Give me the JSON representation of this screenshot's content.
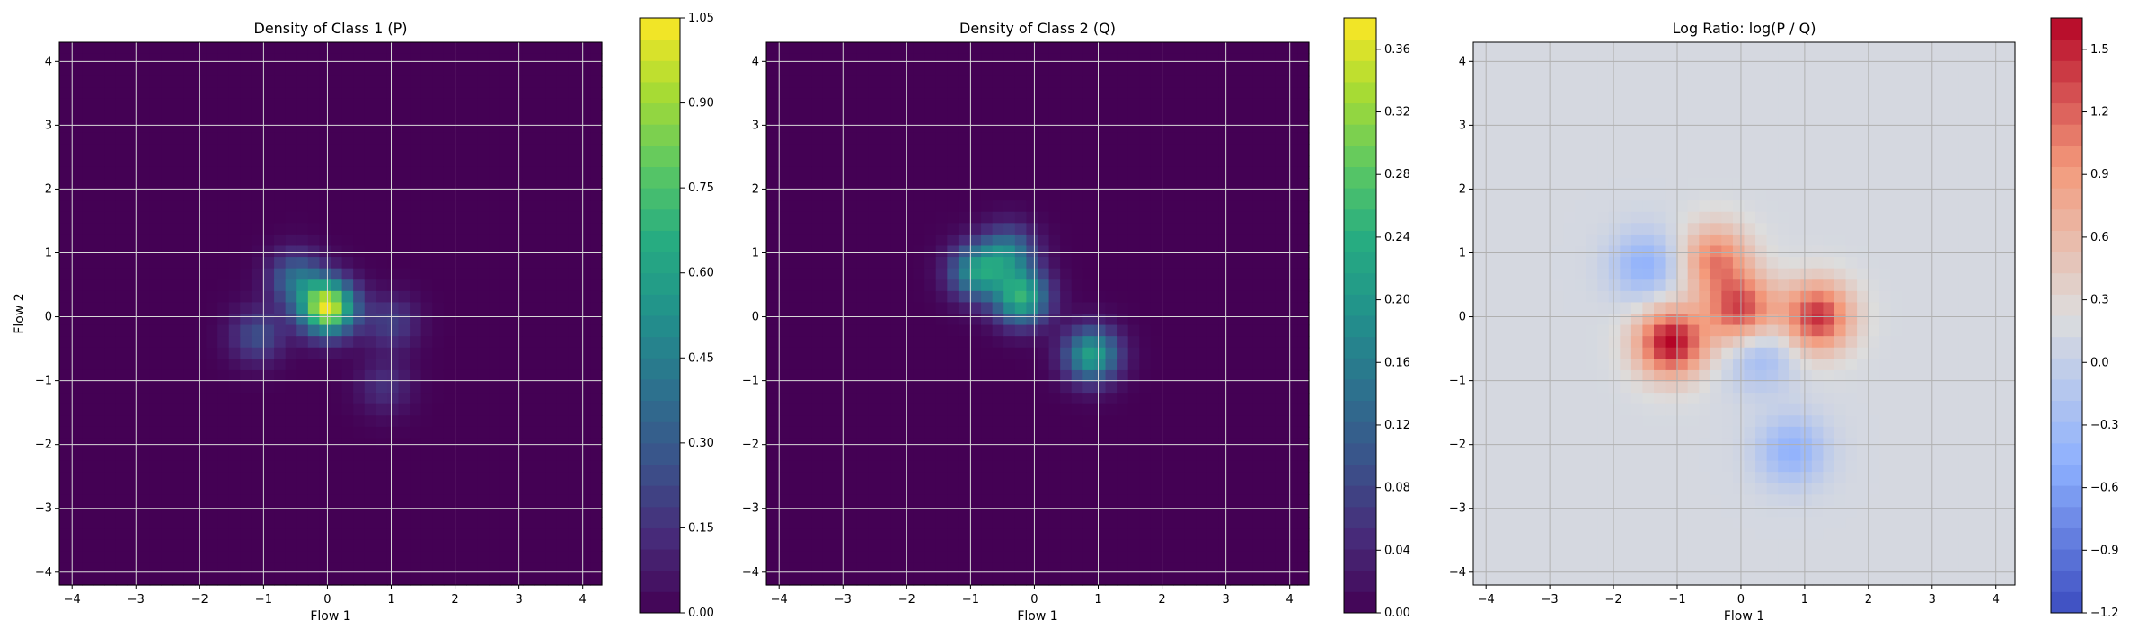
{
  "chart_data": [
    {
      "type": "heatmap",
      "title": "Density of Class 1 (P)",
      "xlabel": "Flow 1",
      "ylabel": "Flow 2",
      "xlim": [
        -4.2,
        4.3
      ],
      "ylim": [
        -4.2,
        4.3
      ],
      "xticks": [
        -4,
        -3,
        -2,
        -1,
        0,
        1,
        2,
        3,
        4
      ],
      "yticks": [
        -4,
        -3,
        -2,
        -1,
        0,
        1,
        2,
        3,
        4
      ],
      "xtick_labels": [
        "−4",
        "−3",
        "−2",
        "−1",
        "0",
        "1",
        "2",
        "3",
        "4"
      ],
      "ytick_labels": [
        "−4",
        "−3",
        "−2",
        "−1",
        "0",
        "1",
        "2",
        "3",
        "4"
      ],
      "grid": true,
      "colormap": "viridis",
      "colorbar": {
        "range": [
          0,
          1.05
        ],
        "ticks": [
          0,
          0.15,
          0.3,
          0.45,
          0.6,
          0.75,
          0.9,
          1.05
        ],
        "tick_labels": [
          "0.00",
          "0.15",
          "0.30",
          "0.45",
          "0.60",
          "0.75",
          "0.90",
          "1.05"
        ]
      },
      "density_peaks": [
        {
          "x": 0.0,
          "y": 0.15,
          "value": 1.0
        },
        {
          "x": -0.5,
          "y": 0.6,
          "value": 0.35
        },
        {
          "x": -1.1,
          "y": -0.3,
          "value": 0.25
        },
        {
          "x": 1.0,
          "y": -0.1,
          "value": 0.2
        },
        {
          "x": 0.9,
          "y": -1.1,
          "value": 0.15
        }
      ]
    },
    {
      "type": "heatmap",
      "title": "Density of Class 2 (Q)",
      "xlabel": "Flow 1",
      "ylabel": "",
      "xlim": [
        -4.2,
        4.3
      ],
      "ylim": [
        -4.2,
        4.3
      ],
      "xticks": [
        -4,
        -3,
        -2,
        -1,
        0,
        1,
        2,
        3,
        4
      ],
      "yticks": [
        -4,
        -3,
        -2,
        -1,
        0,
        1,
        2,
        3,
        4
      ],
      "xtick_labels": [
        "−4",
        "−3",
        "−2",
        "−1",
        "0",
        "1",
        "2",
        "3",
        "4"
      ],
      "ytick_labels": [
        "−4",
        "−3",
        "−2",
        "−1",
        "0",
        "1",
        "2",
        "3",
        "4"
      ],
      "grid": true,
      "colormap": "viridis",
      "colorbar": {
        "range": [
          0,
          0.38
        ],
        "ticks": [
          0,
          0.04,
          0.08,
          0.12,
          0.16,
          0.2,
          0.24,
          0.28,
          0.32,
          0.36
        ],
        "tick_labels": [
          "0.00",
          "0.04",
          "0.08",
          "0.12",
          "0.16",
          "0.20",
          "0.24",
          "0.28",
          "0.32",
          "0.36"
        ]
      },
      "density_peaks": [
        {
          "x": -0.9,
          "y": 0.7,
          "value": 0.2
        },
        {
          "x": -0.2,
          "y": 0.3,
          "value": 0.24
        },
        {
          "x": 0.9,
          "y": -0.6,
          "value": 0.22
        },
        {
          "x": -0.4,
          "y": 1.0,
          "value": 0.15
        }
      ]
    },
    {
      "type": "heatmap",
      "title": "Log Ratio: log(P / Q)",
      "xlabel": "Flow 1",
      "ylabel": "",
      "xlim": [
        -4.2,
        4.3
      ],
      "ylim": [
        -4.2,
        4.3
      ],
      "xticks": [
        -4,
        -3,
        -2,
        -1,
        0,
        1,
        2,
        3,
        4
      ],
      "yticks": [
        -4,
        -3,
        -2,
        -1,
        0,
        1,
        2,
        3,
        4
      ],
      "xtick_labels": [
        "−4",
        "−3",
        "−2",
        "−1",
        "0",
        "1",
        "2",
        "3",
        "4"
      ],
      "ytick_labels": [
        "−4",
        "−3",
        "−2",
        "−1",
        "0",
        "1",
        "2",
        "3",
        "4"
      ],
      "grid": true,
      "colormap": "coolwarm",
      "colorbar": {
        "range": [
          -1.2,
          1.65
        ],
        "ticks": [
          -1.2,
          -0.9,
          -0.6,
          -0.3,
          0,
          0.3,
          0.6,
          0.9,
          1.2,
          1.5
        ],
        "tick_labels": [
          "−1.2",
          "−0.9",
          "−0.6",
          "−0.3",
          "0.0",
          "0.3",
          "0.6",
          "0.9",
          "1.2",
          "1.5"
        ]
      },
      "ratio_features": [
        {
          "x": -1.1,
          "y": -0.4,
          "value": 1.5
        },
        {
          "x": 1.2,
          "y": 0.0,
          "value": 1.3
        },
        {
          "x": 0.0,
          "y": 0.1,
          "value": 1.2
        },
        {
          "x": -0.4,
          "y": 0.9,
          "value": 0.9
        },
        {
          "x": -1.5,
          "y": 0.8,
          "value": -0.6
        },
        {
          "x": 0.8,
          "y": -2.1,
          "value": -0.6
        },
        {
          "x": 0.3,
          "y": -0.6,
          "value": -0.5
        }
      ]
    }
  ]
}
